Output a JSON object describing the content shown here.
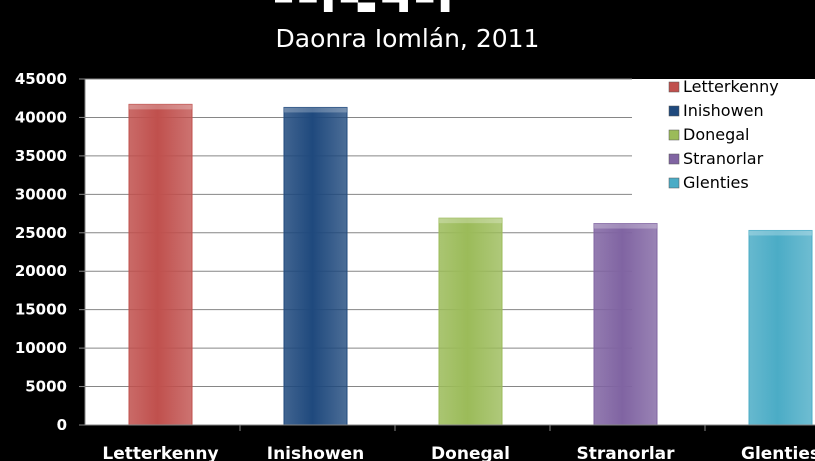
{
  "chart_data": {
    "type": "bar",
    "title": "Daonra Iomlán, 2011",
    "categories": [
      "Letterkenny",
      "Inishowen",
      "Donegal",
      "Stranorlar",
      "Glenties"
    ],
    "values": [
      41700,
      41300,
      26900,
      26200,
      25300
    ],
    "colors": [
      "#c0504d",
      "#1f497d",
      "#9bbb59",
      "#8064a2",
      "#4bacc6"
    ],
    "ylim": [
      0,
      45000
    ],
    "yticks": [
      "0",
      "5000",
      "10000",
      "15000",
      "20000",
      "25000",
      "30000",
      "35000",
      "40000",
      "45000"
    ],
    "xlabel": "",
    "ylabel": "",
    "grid": true,
    "legend": {
      "position": "top-right",
      "entries": [
        "Letterkenny",
        "Inishowen",
        "Donegal",
        "Stranorlar",
        "Glenties"
      ]
    }
  }
}
